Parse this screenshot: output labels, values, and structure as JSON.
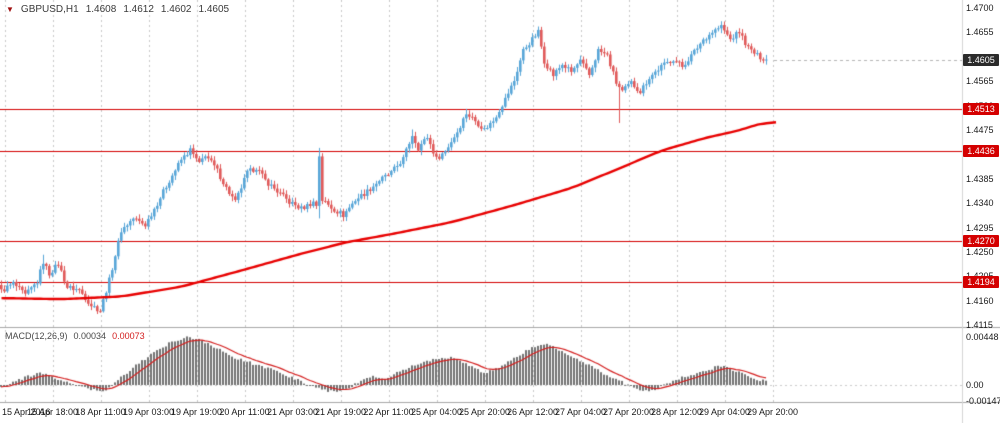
{
  "quote": {
    "symbol": "GBPUSD,H1",
    "open": "1.4608",
    "high": "1.4612",
    "low": "1.4602",
    "close": "1.4605"
  },
  "colors": {
    "background": "#ffffff",
    "grid": "#c9c9c9",
    "separator": "#a8a8a8",
    "bull": "#58a6d8",
    "bear": "#e05a5a",
    "ma_line": "#e80000",
    "hline": "#d40000",
    "tag_red": "#d40000",
    "tag_dark": "#2b2b2b",
    "axis_text": "#1a1a1a",
    "macd_bar": "#737373",
    "macd_signal": "#d42020",
    "current_price_line": "#b5b5b5"
  },
  "chart_data": {
    "type": "candlestick",
    "title": "GBPUSD,H1",
    "symbol": "GBPUSD",
    "timeframe": "H1",
    "bars": 256,
    "price_axis_ticks": [
      "1.4700",
      "1.4655",
      "1.4565",
      "1.4520",
      "1.4475",
      "1.4430",
      "1.4385",
      "1.4340",
      "1.4295",
      "1.4250",
      "1.4205",
      "1.4160",
      "1.4115"
    ],
    "current": {
      "price": 1.4605,
      "label": "1.4605"
    },
    "horizontal_lines": [
      {
        "price": 1.4513,
        "label": "1.4513"
      },
      {
        "price": 1.4436,
        "label": "1.4436"
      },
      {
        "price": 1.427,
        "label": "1.4270"
      },
      {
        "price": 1.4194,
        "label": "1.4194"
      }
    ],
    "time_axis_labels": [
      "15 Apr 2016",
      "15 Apr 18:00",
      "18 Apr 11:00",
      "19 Apr 03:00",
      "19 Apr 19:00",
      "20 Apr 11:00",
      "21 Apr 03:00",
      "21 Apr 19:00",
      "22 Apr 11:00",
      "25 Apr 04:00",
      "25 Apr 20:00",
      "26 Apr 12:00",
      "27 Apr 04:00",
      "27 Apr 20:00",
      "28 Apr 12:00",
      "29 Apr 04:00",
      "29 Apr 20:00"
    ],
    "close_path": [
      [
        0,
        1.4178
      ],
      [
        4,
        1.4192
      ],
      [
        8,
        1.417
      ],
      [
        12,
        1.4195
      ],
      [
        14,
        1.4232
      ],
      [
        16,
        1.421
      ],
      [
        19,
        1.4228
      ],
      [
        22,
        1.4185
      ],
      [
        26,
        1.418
      ],
      [
        30,
        1.4152
      ],
      [
        33,
        1.4142
      ],
      [
        36,
        1.4198
      ],
      [
        40,
        1.429
      ],
      [
        44,
        1.4312
      ],
      [
        48,
        1.43
      ],
      [
        52,
        1.434
      ],
      [
        56,
        1.4382
      ],
      [
        60,
        1.442
      ],
      [
        63,
        1.4438
      ],
      [
        66,
        1.4412
      ],
      [
        68,
        1.443
      ],
      [
        72,
        1.44
      ],
      [
        75,
        1.4368
      ],
      [
        78,
        1.4342
      ],
      [
        82,
        1.4396
      ],
      [
        85,
        1.4406
      ],
      [
        88,
        1.4382
      ],
      [
        92,
        1.4362
      ],
      [
        96,
        1.4342
      ],
      [
        100,
        1.433
      ],
      [
        104,
        1.4342
      ],
      [
        105,
        1.4336
      ],
      [
        106,
        1.4428
      ],
      [
        107,
        1.4346
      ],
      [
        110,
        1.4332
      ],
      [
        114,
        1.4318
      ],
      [
        118,
        1.4346
      ],
      [
        122,
        1.4362
      ],
      [
        126,
        1.4382
      ],
      [
        130,
        1.4396
      ],
      [
        134,
        1.4422
      ],
      [
        137,
        1.4466
      ],
      [
        139,
        1.4442
      ],
      [
        142,
        1.4462
      ],
      [
        145,
        1.4422
      ],
      [
        148,
        1.4436
      ],
      [
        152,
        1.4472
      ],
      [
        155,
        1.4506
      ],
      [
        158,
        1.4492
      ],
      [
        161,
        1.4476
      ],
      [
        164,
        1.4492
      ],
      [
        168,
        1.4532
      ],
      [
        171,
        1.4566
      ],
      [
        174,
        1.4622
      ],
      [
        177,
        1.4642
      ],
      [
        179,
        1.4656
      ],
      [
        181,
        1.4602
      ],
      [
        184,
        1.4576
      ],
      [
        187,
        1.4596
      ],
      [
        190,
        1.4582
      ],
      [
        193,
        1.4602
      ],
      [
        196,
        1.4576
      ],
      [
        199,
        1.4622
      ],
      [
        202,
        1.4612
      ],
      [
        205,
        1.4562
      ],
      [
        207,
        1.4546
      ],
      [
        210,
        1.4562
      ],
      [
        213,
        1.4546
      ],
      [
        216,
        1.4572
      ],
      [
        220,
        1.4592
      ],
      [
        224,
        1.4606
      ],
      [
        227,
        1.4592
      ],
      [
        230,
        1.4612
      ],
      [
        234,
        1.4642
      ],
      [
        237,
        1.4656
      ],
      [
        240,
        1.4666
      ],
      [
        243,
        1.4642
      ],
      [
        246,
        1.4656
      ],
      [
        249,
        1.4626
      ],
      [
        252,
        1.4612
      ],
      [
        255,
        1.4605
      ]
    ],
    "ma_path": [
      [
        0,
        1.4165
      ],
      [
        20,
        1.4163
      ],
      [
        40,
        1.4168
      ],
      [
        60,
        1.4186
      ],
      [
        80,
        1.4216
      ],
      [
        100,
        1.4247
      ],
      [
        115,
        1.4268
      ],
      [
        130,
        1.4283
      ],
      [
        150,
        1.4305
      ],
      [
        170,
        1.4335
      ],
      [
        190,
        1.4368
      ],
      [
        205,
        1.4402
      ],
      [
        220,
        1.4437
      ],
      [
        235,
        1.4461
      ],
      [
        245,
        1.4473
      ],
      [
        255,
        1.449
      ]
    ],
    "spikes": [
      {
        "i": 14,
        "high": 1.4245
      },
      {
        "i": 106,
        "high": 1.4442,
        "low": 1.4312
      },
      {
        "i": 137,
        "high": 1.4476
      },
      {
        "i": 155,
        "high": 1.4514
      },
      {
        "i": 179,
        "high": 1.4662
      },
      {
        "i": 206,
        "low": 1.4488
      },
      {
        "i": 240,
        "high": 1.4672
      }
    ],
    "macd": {
      "label": "MACD(12,26,9)",
      "value_macd": "0.00034",
      "value_signal": "0.00073",
      "axis_ticks": [
        {
          "value": 0.00448,
          "label": "0.00448"
        },
        {
          "value": 0.0,
          "label": "0.00"
        },
        {
          "value": -0.00147,
          "label": "-0.00147"
        }
      ],
      "path": [
        [
          0,
          -0.0002
        ],
        [
          5,
          0.0004
        ],
        [
          10,
          0.0009
        ],
        [
          14,
          0.0011
        ],
        [
          18,
          0.0006
        ],
        [
          24,
          0.0001
        ],
        [
          30,
          -0.0004
        ],
        [
          34,
          -0.0006
        ],
        [
          38,
          0.0002
        ],
        [
          44,
          0.0016
        ],
        [
          50,
          0.0028
        ],
        [
          56,
          0.0039
        ],
        [
          62,
          0.0045
        ],
        [
          66,
          0.0043
        ],
        [
          72,
          0.0034
        ],
        [
          78,
          0.0025
        ],
        [
          84,
          0.002
        ],
        [
          90,
          0.0015
        ],
        [
          96,
          0.0008
        ],
        [
          102,
          0.0001
        ],
        [
          108,
          -0.0005
        ],
        [
          112,
          -0.0007
        ],
        [
          116,
          -0.0003
        ],
        [
          120,
          0.0004
        ],
        [
          124,
          0.0008
        ],
        [
          128,
          0.0006
        ],
        [
          132,
          0.0011
        ],
        [
          138,
          0.0019
        ],
        [
          144,
          0.0024
        ],
        [
          150,
          0.0026
        ],
        [
          156,
          0.0018
        ],
        [
          161,
          0.0011
        ],
        [
          166,
          0.0016
        ],
        [
          172,
          0.0027
        ],
        [
          178,
          0.0036
        ],
        [
          182,
          0.0038
        ],
        [
          188,
          0.003
        ],
        [
          194,
          0.0021
        ],
        [
          200,
          0.0012
        ],
        [
          206,
          0.0004
        ],
        [
          212,
          -0.0004
        ],
        [
          218,
          -0.0005
        ],
        [
          222,
          0.0001
        ],
        [
          228,
          0.0008
        ],
        [
          234,
          0.0013
        ],
        [
          240,
          0.0018
        ],
        [
          245,
          0.0013
        ],
        [
          250,
          0.0007
        ],
        [
          255,
          0.00034
        ]
      ]
    }
  }
}
